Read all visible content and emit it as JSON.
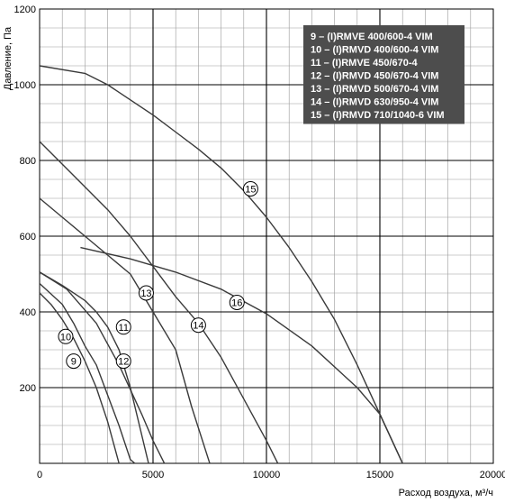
{
  "chart_data": {
    "type": "line",
    "xlabel": "Расход воздуха, м³/ч",
    "ylabel": "Давление, Па",
    "xlim": [
      0,
      20000
    ],
    "ylim": [
      0,
      1200
    ],
    "x_ticks": [
      0,
      5000,
      10000,
      15000,
      20000
    ],
    "y_ticks": [
      200,
      400,
      600,
      800,
      1000,
      1200
    ],
    "x_tick_labels": [
      "0",
      "5000",
      "10000",
      "15000",
      "20000"
    ],
    "y_tick_labels": [
      "200",
      "400",
      "600",
      "800",
      "1000",
      "1200"
    ],
    "grid": true,
    "legend_position": "top-right",
    "legend": [
      "9 – (I)RMVE 400/600-4 VIM",
      "10 – (I)RMVD 400/600-4 VIM",
      "11 – (I)RMVE 450/670-4",
      "12 – (I)RMVD 450/670-4 VIM",
      "13 – (I)RMVD 500/670-4 VIM",
      "14 – (I)RMVD 630/950-4 VIM",
      "15 – (I)RMVD 710/1040-6 VIM"
    ],
    "series": [
      {
        "label": "9",
        "label_at": [
          1500,
          270
        ],
        "points": [
          [
            0,
            450
          ],
          [
            500,
            420
          ],
          [
            1000,
            380
          ],
          [
            1500,
            330
          ],
          [
            2000,
            270
          ],
          [
            2500,
            200
          ],
          [
            3000,
            110
          ],
          [
            3500,
            0
          ]
        ]
      },
      {
        "label": "10",
        "label_at": [
          1150,
          335
        ],
        "points": [
          [
            0,
            475
          ],
          [
            1000,
            420
          ],
          [
            1500,
            370
          ],
          [
            2000,
            310
          ],
          [
            2500,
            260
          ],
          [
            3000,
            180
          ],
          [
            3500,
            100
          ],
          [
            4000,
            10
          ],
          [
            4200,
            0
          ]
        ]
      },
      {
        "label": "11",
        "label_at": [
          3700,
          360
        ],
        "points": [
          [
            0,
            505
          ],
          [
            1000,
            470
          ],
          [
            2000,
            430
          ],
          [
            2500,
            400
          ],
          [
            3000,
            360
          ],
          [
            3500,
            300
          ],
          [
            4000,
            200
          ],
          [
            4800,
            0
          ]
        ]
      },
      {
        "label": "12",
        "label_at": [
          3700,
          270
        ],
        "points": [
          [
            0,
            505
          ],
          [
            1200,
            460
          ],
          [
            2500,
            370
          ],
          [
            3500,
            260
          ],
          [
            4500,
            130
          ],
          [
            5000,
            60
          ],
          [
            5500,
            0
          ]
        ]
      },
      {
        "label": "13",
        "label_at": [
          4700,
          450
        ],
        "points": [
          [
            0,
            700
          ],
          [
            1000,
            650
          ],
          [
            2000,
            600
          ],
          [
            3000,
            550
          ],
          [
            4000,
            500
          ],
          [
            4500,
            450
          ],
          [
            5000,
            400
          ],
          [
            6000,
            300
          ],
          [
            6700,
            150
          ],
          [
            7500,
            0
          ]
        ]
      },
      {
        "label": "14",
        "label_at": [
          7000,
          365
        ],
        "points": [
          [
            0,
            850
          ],
          [
            1500,
            760
          ],
          [
            3000,
            670
          ],
          [
            4000,
            600
          ],
          [
            5000,
            520
          ],
          [
            6000,
            440
          ],
          [
            7000,
            370
          ],
          [
            8000,
            280
          ],
          [
            9000,
            170
          ],
          [
            10000,
            60
          ],
          [
            10500,
            0
          ]
        ]
      },
      {
        "label": "15",
        "label_at": [
          9300,
          725
        ],
        "points": [
          [
            0,
            1050
          ],
          [
            2000,
            1030
          ],
          [
            3000,
            1000
          ],
          [
            4000,
            960
          ],
          [
            5000,
            920
          ],
          [
            6000,
            875
          ],
          [
            7000,
            830
          ],
          [
            8000,
            780
          ],
          [
            9000,
            720
          ],
          [
            10000,
            650
          ],
          [
            11000,
            570
          ],
          [
            12000,
            480
          ],
          [
            13000,
            380
          ],
          [
            14000,
            260
          ],
          [
            15000,
            130
          ],
          [
            16000,
            0
          ]
        ]
      },
      {
        "label": "16",
        "label_at": [
          8700,
          425
        ],
        "points": [
          [
            1800,
            570
          ],
          [
            4000,
            540
          ],
          [
            6000,
            505
          ],
          [
            8000,
            460
          ],
          [
            10000,
            395
          ],
          [
            12000,
            310
          ],
          [
            14000,
            200
          ],
          [
            15000,
            130
          ],
          [
            16000,
            0
          ]
        ]
      }
    ]
  }
}
